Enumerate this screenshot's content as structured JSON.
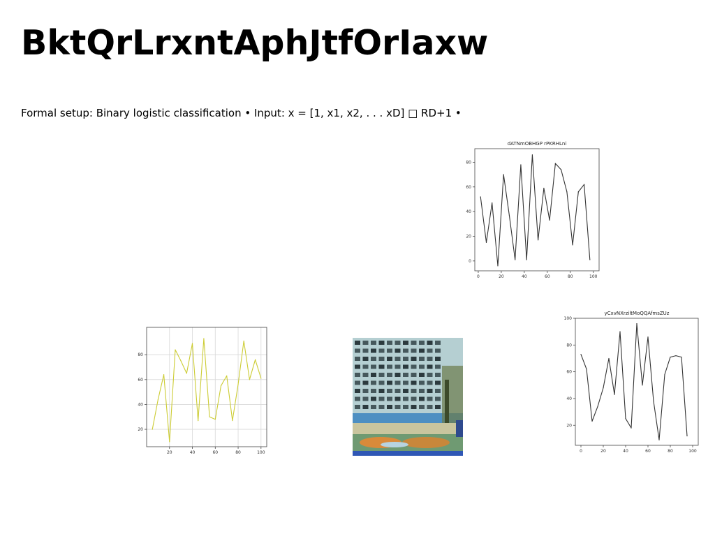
{
  "page": {
    "title": "BktQrLrxntAphJtfOrIaxw",
    "subtitle": "Formal setup: Binary logistic classification • Input: x = [1, x1, x2, . . . xD] □ RD+1 •"
  },
  "chart_data": [
    {
      "id": "chart-top-right",
      "type": "line",
      "title": "dATNmOBHGP rPKRHLni",
      "xlabel": "",
      "ylabel": "",
      "color": "#333333",
      "grid": false,
      "xlim": [
        -3,
        105
      ],
      "ylim": [
        -8,
        91
      ],
      "x_ticks": [
        0,
        20,
        40,
        60,
        80,
        100
      ],
      "y_ticks": [
        0,
        20,
        40,
        60,
        80
      ],
      "series": [
        {
          "x": [
            2,
            7,
            12,
            17,
            22,
            27,
            32,
            37,
            42,
            47,
            52,
            57,
            62,
            67,
            72,
            77,
            82,
            87,
            92,
            97
          ],
          "values": [
            52,
            15,
            47,
            -4,
            70,
            37,
            1,
            78,
            1,
            86,
            17,
            59,
            33,
            79,
            74,
            56,
            13,
            56,
            62,
            1
          ]
        }
      ]
    },
    {
      "id": "chart-bottom-left",
      "type": "line",
      "title": "",
      "xlabel": "",
      "ylabel": "",
      "color": "#cccc33",
      "grid": true,
      "xlim": [
        0,
        105
      ],
      "ylim": [
        6,
        102
      ],
      "x_ticks": [
        20,
        40,
        60,
        80,
        100
      ],
      "y_ticks": [
        20,
        40,
        60,
        80
      ],
      "series": [
        {
          "x": [
            5,
            10,
            15,
            20,
            25,
            30,
            35,
            40,
            45,
            50,
            55,
            60,
            65,
            70,
            75,
            80,
            85,
            90,
            95,
            100
          ],
          "values": [
            20,
            44,
            64,
            10,
            84,
            75,
            65,
            89,
            27,
            93,
            30,
            28,
            55,
            63,
            27,
            56,
            91,
            60,
            76,
            61
          ]
        }
      ]
    },
    {
      "id": "chart-bottom-right",
      "type": "line",
      "title": "yCxvNXrziltMoQQAfmsZUz",
      "xlabel": "",
      "ylabel": "",
      "color": "#333333",
      "grid": false,
      "xlim": [
        -5,
        105
      ],
      "ylim": [
        5,
        100
      ],
      "x_ticks": [
        0,
        20,
        40,
        60,
        80,
        100
      ],
      "y_ticks": [
        20,
        40,
        60,
        80,
        100
      ],
      "series": [
        {
          "x": [
            0,
            5,
            10,
            15,
            20,
            25,
            30,
            35,
            40,
            45,
            50,
            55,
            60,
            65,
            70,
            75,
            80,
            85,
            90,
            95
          ],
          "values": [
            73,
            62,
            23,
            34,
            48,
            70,
            43,
            90,
            25,
            18,
            96,
            50,
            86,
            38,
            9,
            58,
            71,
            72,
            71,
            12
          ]
        }
      ]
    }
  ],
  "images": {
    "photo": {
      "icon": "building-courtyard-photo"
    }
  }
}
